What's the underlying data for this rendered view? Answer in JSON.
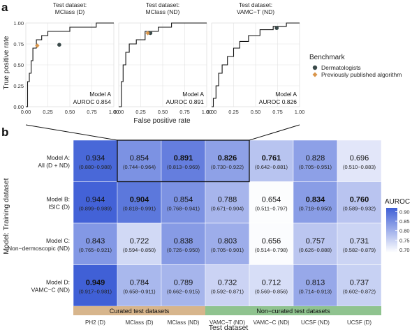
{
  "panel_labels": {
    "a": "a",
    "b": "b"
  },
  "chart_data": [
    {
      "type": "line",
      "panel": "a",
      "ylabel": "True positive rate",
      "xlabel": "False positive rate",
      "xlim": [
        0,
        1
      ],
      "ylim": [
        0,
        1
      ],
      "x_ticks": [
        "0.00",
        "0.25",
        "0.50",
        "0.75",
        "1.00"
      ],
      "y_ticks": [
        "0.00",
        "0.25",
        "0.50",
        "0.75",
        "1.00"
      ],
      "grid": true,
      "legend": {
        "title": "Benchmark",
        "placement": "right",
        "entries": [
          {
            "name": "Dermatologists",
            "color": "#3a4a4a",
            "shape": "circle"
          },
          {
            "name": "Previously published algorithm",
            "color": "#d9954a",
            "shape": "diamond"
          }
        ]
      },
      "subplots": [
        {
          "title": [
            "Test dataset:",
            "MClass (D)"
          ],
          "model_label": "Model A",
          "auroc_label": "AUROC 0.854",
          "roc": [
            [
              0,
              0
            ],
            [
              0.02,
              0
            ],
            [
              0.02,
              0.3
            ],
            [
              0.04,
              0.3
            ],
            [
              0.04,
              0.4
            ],
            [
              0.06,
              0.4
            ],
            [
              0.06,
              0.55
            ],
            [
              0.08,
              0.55
            ],
            [
              0.08,
              0.7
            ],
            [
              0.12,
              0.7
            ],
            [
              0.12,
              0.8
            ],
            [
              0.18,
              0.8
            ],
            [
              0.18,
              0.85
            ],
            [
              0.25,
              0.85
            ],
            [
              0.25,
              0.9
            ],
            [
              0.5,
              0.9
            ],
            [
              0.5,
              0.95
            ],
            [
              0.8,
              0.95
            ],
            [
              0.8,
              1
            ],
            [
              1,
              1
            ]
          ],
          "dermatologists": [
            [
              0.38,
              0.74
            ]
          ],
          "published_algorithm": [
            [
              0.13,
              0.73
            ]
          ]
        },
        {
          "title": [
            "Test dataset:",
            "MClass (ND)"
          ],
          "model_label": "Model A",
          "auroc_label": "AUROC 0.891",
          "roc": [
            [
              0,
              0
            ],
            [
              0.03,
              0
            ],
            [
              0.03,
              0.3
            ],
            [
              0.05,
              0.3
            ],
            [
              0.05,
              0.5
            ],
            [
              0.08,
              0.5
            ],
            [
              0.08,
              0.65
            ],
            [
              0.12,
              0.65
            ],
            [
              0.12,
              0.75
            ],
            [
              0.2,
              0.75
            ],
            [
              0.2,
              0.8
            ],
            [
              0.3,
              0.8
            ],
            [
              0.3,
              0.9
            ],
            [
              0.45,
              0.9
            ],
            [
              0.45,
              0.95
            ],
            [
              0.6,
              0.95
            ],
            [
              0.6,
              1
            ],
            [
              1,
              1
            ]
          ],
          "dermatologists": [
            [
              0.36,
              0.88
            ]
          ],
          "published_algorithm": [
            [
              0.33,
              0.88
            ]
          ]
        },
        {
          "title": [
            "Test dataset:",
            "VAMC−T (ND)"
          ],
          "model_label": "Model A",
          "auroc_label": "AUROC 0.826",
          "roc": [
            [
              0,
              0
            ],
            [
              0.02,
              0
            ],
            [
              0.02,
              0.1
            ],
            [
              0.05,
              0.1
            ],
            [
              0.05,
              0.25
            ],
            [
              0.08,
              0.25
            ],
            [
              0.08,
              0.4
            ],
            [
              0.12,
              0.4
            ],
            [
              0.12,
              0.5
            ],
            [
              0.18,
              0.5
            ],
            [
              0.18,
              0.6
            ],
            [
              0.25,
              0.6
            ],
            [
              0.25,
              0.7
            ],
            [
              0.32,
              0.7
            ],
            [
              0.32,
              0.78
            ],
            [
              0.42,
              0.78
            ],
            [
              0.42,
              0.85
            ],
            [
              0.55,
              0.85
            ],
            [
              0.55,
              0.92
            ],
            [
              0.7,
              0.92
            ],
            [
              0.7,
              0.96
            ],
            [
              0.85,
              0.96
            ],
            [
              0.85,
              1
            ],
            [
              1,
              1
            ]
          ],
          "dermatologists": [
            [
              0.74,
              0.94
            ]
          ],
          "published_algorithm": []
        }
      ]
    },
    {
      "type": "heatmap",
      "panel": "b",
      "xlabel": "Test dataset",
      "ylabel": "Model: Training dataset",
      "columns": [
        "PH2 (D)",
        "MClass (D)",
        "MClass (ND)",
        "VAMC−T (ND)",
        "VAMC−C (ND)",
        "UCSF (ND)",
        "UCSF (D)"
      ],
      "rows": [
        {
          "label": [
            "Model A:",
            "All (D + ND)"
          ]
        },
        {
          "label": [
            "Model B:",
            "ISIC (D)"
          ]
        },
        {
          "label": [
            "Model C:",
            "Non−dermoscopic (ND)"
          ]
        },
        {
          "label": [
            "Model D:",
            "VAMC−C (ND)"
          ]
        }
      ],
      "values": [
        [
          0.934,
          0.854,
          0.891,
          0.826,
          0.761,
          0.828,
          0.696
        ],
        [
          0.944,
          0.904,
          0.854,
          0.788,
          0.654,
          0.834,
          0.76
        ],
        [
          0.843,
          0.722,
          0.838,
          0.803,
          0.656,
          0.757,
          0.731
        ],
        [
          0.949,
          0.784,
          0.789,
          0.732,
          0.712,
          0.813,
          0.737
        ]
      ],
      "value_labels": [
        [
          "0.934",
          "0.854",
          "0.891",
          "0.826",
          "0.761",
          "0.828",
          "0.696"
        ],
        [
          "0.944",
          "0.904",
          "0.854",
          "0.788",
          "0.654",
          "0.834",
          "0.760"
        ],
        [
          "0.843",
          "0.722",
          "0.838",
          "0.803",
          "0.656",
          "0.757",
          "0.731"
        ],
        [
          "0.949",
          "0.784",
          "0.789",
          "0.732",
          "0.712",
          "0.813",
          "0.737"
        ]
      ],
      "ci": [
        [
          "(0.880−0.988)",
          "(0.744−0.964)",
          "(0.813−0.969)",
          "(0.730−0.922)",
          "(0.642−0.881)",
          "(0.705−0.951)",
          "(0.510−0.883)"
        ],
        [
          "(0.899−0.989)",
          "(0.818−0.991)",
          "(0.768−0.941)",
          "(0.671−0.904)",
          "(0.511−0.797)",
          "(0.718−0.950)",
          "(0.589−0.932)"
        ],
        [
          "(0.765−0.921)",
          "(0.594−0.850)",
          "(0.726−0.950)",
          "(0.705−0.901)",
          "(0.514−0.798)",
          "(0.626−0.888)",
          "(0.582−0.879)"
        ],
        [
          "(0.917−0.981)",
          "(0.658−0.911)",
          "(0.662−0.915)",
          "(0.592−0.871)",
          "(0.569−0.856)",
          "(0.714−0.913)",
          "(0.602−0.872)"
        ]
      ],
      "bold": [
        [
          false,
          false,
          true,
          true,
          true,
          false,
          false
        ],
        [
          false,
          true,
          false,
          false,
          false,
          true,
          true
        ],
        [
          false,
          false,
          false,
          false,
          false,
          false,
          false
        ],
        [
          true,
          false,
          false,
          false,
          false,
          false,
          false
        ]
      ],
      "color_scale": {
        "title": "AUROC",
        "min": 0.65,
        "max": 0.95,
        "low_color": "#ffffff",
        "high_color": "#3f5fd6",
        "ticks": [
          "0.90",
          "0.85",
          "0.80",
          "0.75",
          "0.70"
        ]
      },
      "column_groups": [
        {
          "label": "Curated test datasets",
          "columns": [
            0,
            2
          ],
          "color": "#d7b58c"
        },
        {
          "label": "Non−curated test datasets",
          "columns": [
            3,
            6
          ],
          "color": "#8fc38f"
        }
      ],
      "highlight": {
        "row": 0,
        "columns": [
          1,
          3
        ]
      }
    }
  ]
}
